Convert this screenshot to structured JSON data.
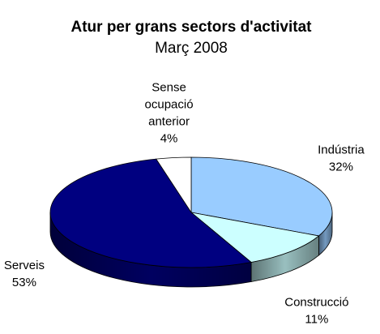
{
  "chart_data": {
    "type": "pie3d",
    "title": "Atur per grans sectors d'activitat",
    "subtitle": "Març 2008",
    "categories": [
      "Indústria",
      "Construcció",
      "Serveis",
      "Sense ocupació anterior"
    ],
    "values": [
      32,
      11,
      53,
      4
    ],
    "value_labels": [
      "32%",
      "11%",
      "53%",
      "4%"
    ],
    "colors": [
      "#99ccff",
      "#ccffff",
      "#000080",
      "#ffffff"
    ]
  }
}
